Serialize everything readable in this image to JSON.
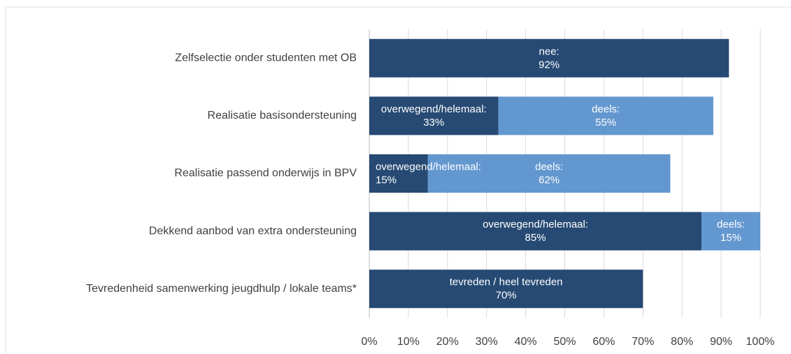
{
  "chart_data": {
    "type": "stacked-bar-horizontal",
    "bars": [
      {
        "category": "Zelfselectie onder studenten met OB",
        "segments": [
          {
            "name": "nee:",
            "value": 92,
            "value_label": "92%",
            "color": "#264a73"
          }
        ]
      },
      {
        "category": "Realisatie basisondersteuning",
        "segments": [
          {
            "name": "overwegend/helemaal:",
            "value": 33,
            "value_label": "33%",
            "color": "#264a73"
          },
          {
            "name": "deels:",
            "value": 55,
            "value_label": "55%",
            "color": "#6397cf"
          }
        ]
      },
      {
        "category": "Realisatie passend onderwijs in BPV",
        "segments": [
          {
            "name": "overwegend/helemaal:",
            "value": 15,
            "value_label": "15%",
            "color": "#264a73"
          },
          {
            "name": "deels:",
            "value": 62,
            "value_label": "62%",
            "color": "#6397cf"
          }
        ]
      },
      {
        "category": "Dekkend aanbod van extra ondersteuning",
        "segments": [
          {
            "name": "overwegend/helemaal:",
            "value": 85,
            "value_label": "85%",
            "color": "#264a73"
          },
          {
            "name": "deels:",
            "value": 15,
            "value_label": "15%",
            "color": "#6397cf"
          }
        ]
      },
      {
        "category": "Tevredenheid samenwerking jeugdhulp / lokale teams*",
        "segments": [
          {
            "name": "tevreden / heel tevreden",
            "value": 70,
            "value_label": "70%",
            "color": "#264a73"
          }
        ]
      }
    ],
    "xlim": [
      0,
      100
    ],
    "xticks": [
      {
        "value": 0,
        "label": "0%"
      },
      {
        "value": 10,
        "label": "10%"
      },
      {
        "value": 20,
        "label": "20%"
      },
      {
        "value": 30,
        "label": "30%"
      },
      {
        "value": 40,
        "label": "40%"
      },
      {
        "value": 50,
        "label": "50%"
      },
      {
        "value": 60,
        "label": "60%"
      },
      {
        "value": 70,
        "label": "70%"
      },
      {
        "value": 80,
        "label": "80%"
      },
      {
        "value": 90,
        "label": "90%"
      },
      {
        "value": 100,
        "label": "100%"
      }
    ],
    "grid": true
  }
}
